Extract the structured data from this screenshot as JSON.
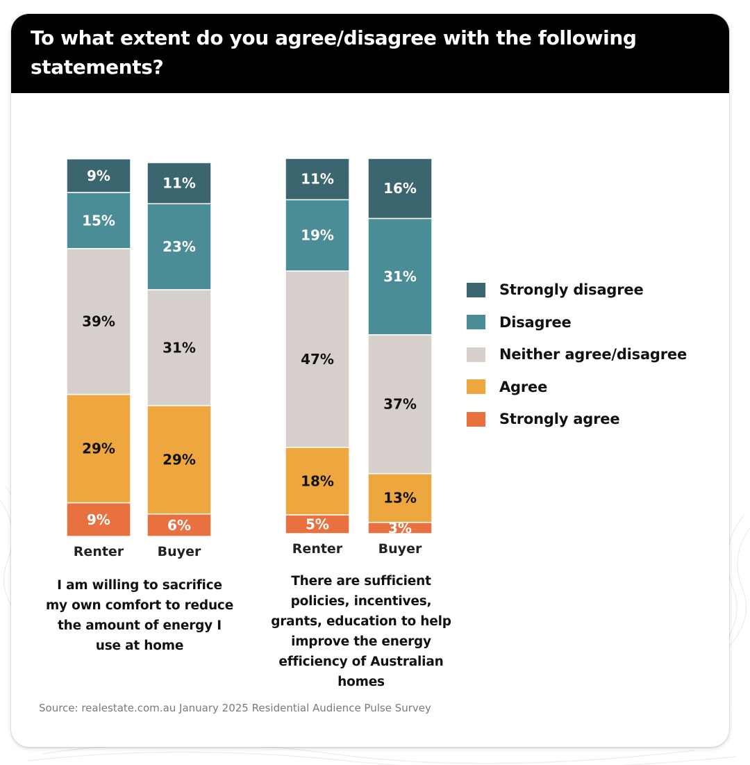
{
  "title": "To what extent do you agree/disagree with the following statements?",
  "source": "Source: realestate.com.au January 2025 Residential Audience Pulse Survey",
  "colors": {
    "strongly_disagree": "#3b6670",
    "disagree": "#4a8d97",
    "neither": "#d6cfcc",
    "agree": "#eea63e",
    "strongly_agree": "#e9703f"
  },
  "legend": [
    {
      "label": "Strongly disagree",
      "color_key": "strongly_disagree"
    },
    {
      "label": "Disagree",
      "color_key": "disagree"
    },
    {
      "label": "Neither agree/disagree",
      "color_key": "neither"
    },
    {
      "label": "Agree",
      "color_key": "agree"
    },
    {
      "label": "Strongly agree",
      "color_key": "strongly_agree"
    }
  ],
  "chart_data": [
    {
      "type": "bar",
      "stacked": true,
      "caption": "I am willing to sacrifice my own comfort to reduce the amount of energy I use at home",
      "categories": [
        "Renter",
        "Buyer"
      ],
      "series": [
        {
          "name": "Strongly agree",
          "values": [
            9,
            6
          ],
          "labels": [
            "9%",
            "6%"
          ]
        },
        {
          "name": "Agree",
          "values": [
            29,
            29
          ],
          "labels": [
            "29%",
            "29%"
          ]
        },
        {
          "name": "Neither agree/disagree",
          "values": [
            39,
            31
          ],
          "labels": [
            "39%",
            "31%"
          ]
        },
        {
          "name": "Disagree",
          "values": [
            15,
            23
          ],
          "labels": [
            "15%",
            "23%"
          ]
        },
        {
          "name": "Strongly disagree",
          "values": [
            9,
            11
          ],
          "labels": [
            "9%",
            "11%"
          ]
        }
      ]
    },
    {
      "type": "bar",
      "stacked": true,
      "caption": "There are sufficient policies, incentives, grants, education to help improve the energy efficiency of Australian homes",
      "categories": [
        "Renter",
        "Buyer"
      ],
      "series": [
        {
          "name": "Strongly agree",
          "values": [
            5,
            3
          ],
          "labels": [
            "5%",
            "3%"
          ]
        },
        {
          "name": "Agree",
          "values": [
            18,
            13
          ],
          "labels": [
            "18%",
            "13%"
          ]
        },
        {
          "name": "Neither agree/disagree",
          "values": [
            47,
            37
          ],
          "labels": [
            "47%",
            "37%"
          ]
        },
        {
          "name": "Disagree",
          "values": [
            19,
            31
          ],
          "labels": [
            "19%",
            "31%"
          ]
        },
        {
          "name": "Strongly disagree",
          "values": [
            11,
            16
          ],
          "labels": [
            "11%",
            "16%"
          ]
        }
      ]
    }
  ]
}
